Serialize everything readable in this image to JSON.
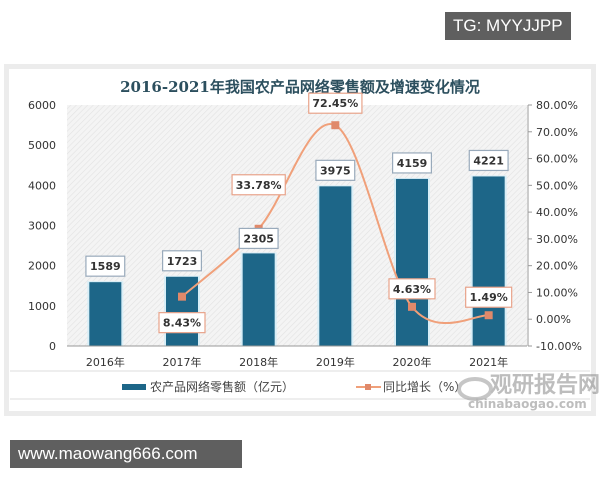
{
  "watermarks": {
    "top": "TG: MYYJJPP",
    "bottom": "www.maowang666.com",
    "logo_cn": "观研报告网",
    "logo_en": "chinabaogao.com"
  },
  "chart_data": {
    "type": "bar+line",
    "title": "2016-2021年我国农产品网络零售额及增速变化情况",
    "categories": [
      "2016年",
      "2017年",
      "2018年",
      "2019年",
      "2020年",
      "2021年"
    ],
    "series": [
      {
        "name": "农产品网络零售额（亿元）",
        "type": "bar",
        "axis": "left",
        "color": "#1d6688",
        "values": [
          1589,
          1723,
          2305,
          3975,
          4159,
          4221
        ],
        "labels": [
          "1589",
          "1723",
          "2305",
          "3975",
          "4159",
          "4221"
        ]
      },
      {
        "name": "同比增长（%）",
        "type": "line",
        "axis": "right",
        "color": "#f0a07a",
        "values": [
          null,
          8.43,
          33.78,
          72.45,
          4.63,
          1.49
        ],
        "labels": [
          "",
          "8.43%",
          "33.78%",
          "72.45%",
          "4.63%",
          "1.49%"
        ]
      }
    ],
    "y_left": {
      "range": [
        0,
        6000
      ],
      "ticks": [
        "0",
        "1000",
        "2000",
        "3000",
        "4000",
        "5000",
        "6000"
      ]
    },
    "y_right": {
      "range": [
        -10,
        80
      ],
      "ticks": [
        "-10.00%",
        "0.00%",
        "10.00%",
        "20.00%",
        "30.00%",
        "40.00%",
        "50.00%",
        "60.00%",
        "70.00%",
        "80.00%"
      ]
    },
    "legend": "bottom",
    "grid": false
  }
}
